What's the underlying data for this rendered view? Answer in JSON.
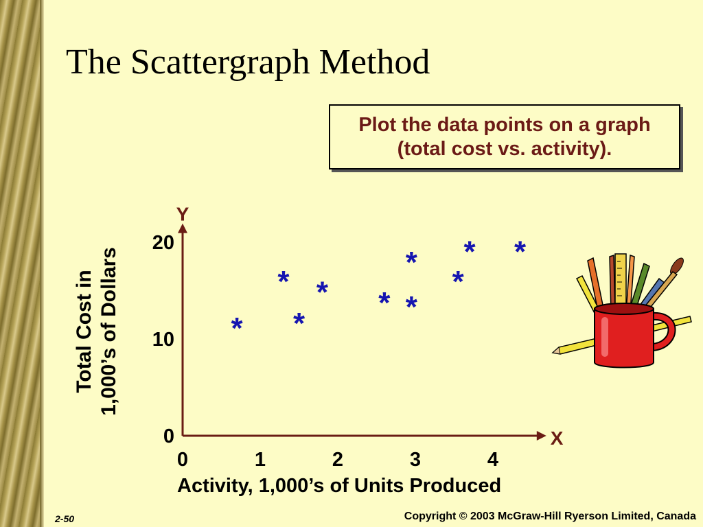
{
  "slide": {
    "title": "The Scattergraph Method",
    "callout": "Plot the data points on a graph (total cost vs. activity).",
    "slide_number": "2-50",
    "copyright": "Copyright © 2003 McGraw-Hill Ryerson Limited, Canada"
  },
  "chart_data": {
    "type": "scatter",
    "marker": "*",
    "marker_color": "#1515b0",
    "axis_color": "#6a1c14",
    "xlabel": "Activity, 1,000’s of Units Produced",
    "ylabel_lines": [
      "Total Cost in",
      "1,000’s of Dollars"
    ],
    "x_axis_letter": "X",
    "y_axis_letter": "Y",
    "x_ticks": [
      "0",
      "1",
      "2",
      "3",
      "4"
    ],
    "y_ticks": [
      "0",
      "10",
      "20"
    ],
    "xlim": [
      0,
      4.6
    ],
    "ylim": [
      0,
      21.8
    ],
    "x": [
      0.7,
      1.3,
      1.5,
      1.8,
      2.6,
      2.95,
      2.95,
      3.55,
      3.7,
      4.35
    ],
    "y": [
      11.5,
      16.3,
      12.0,
      15.2,
      14.1,
      18.3,
      13.7,
      16.3,
      19.4,
      19.4
    ]
  }
}
